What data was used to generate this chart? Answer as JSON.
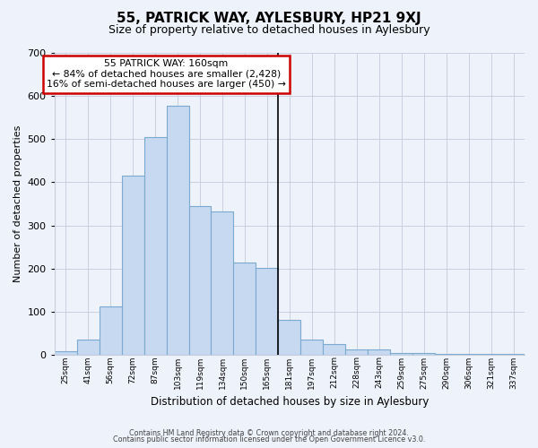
{
  "title": "55, PATRICK WAY, AYLESBURY, HP21 9XJ",
  "subtitle": "Size of property relative to detached houses in Aylesbury",
  "xlabel": "Distribution of detached houses by size in Aylesbury",
  "ylabel": "Number of detached properties",
  "bar_labels": [
    "25sqm",
    "41sqm",
    "56sqm",
    "72sqm",
    "87sqm",
    "103sqm",
    "119sqm",
    "134sqm",
    "150sqm",
    "165sqm",
    "181sqm",
    "197sqm",
    "212sqm",
    "228sqm",
    "243sqm",
    "259sqm",
    "275sqm",
    "290sqm",
    "306sqm",
    "321sqm",
    "337sqm"
  ],
  "bar_values": [
    8,
    35,
    112,
    415,
    505,
    578,
    345,
    333,
    214,
    201,
    80,
    36,
    25,
    13,
    12,
    3,
    3,
    1,
    1,
    1,
    1
  ],
  "bar_color": "#c6d9f0",
  "bar_edge_color": "#7aaad0",
  "property_line_x": 9.5,
  "annotation_title": "55 PATRICK WAY: 160sqm",
  "annotation_line1": "← 84% of detached houses are smaller (2,428)",
  "annotation_line2": "16% of semi-detached houses are larger (450) →",
  "annotation_box_color": "#ffffff",
  "annotation_box_edge": "#cc0000",
  "property_line_color": "#000000",
  "ylim": [
    0,
    700
  ],
  "yticks": [
    0,
    100,
    200,
    300,
    400,
    500,
    600,
    700
  ],
  "footer_line1": "Contains HM Land Registry data © Crown copyright and database right 2024.",
  "footer_line2": "Contains public sector information licensed under the Open Government Licence v3.0.",
  "background_color": "#eef2fa",
  "grid_color": "#c8d0e0"
}
